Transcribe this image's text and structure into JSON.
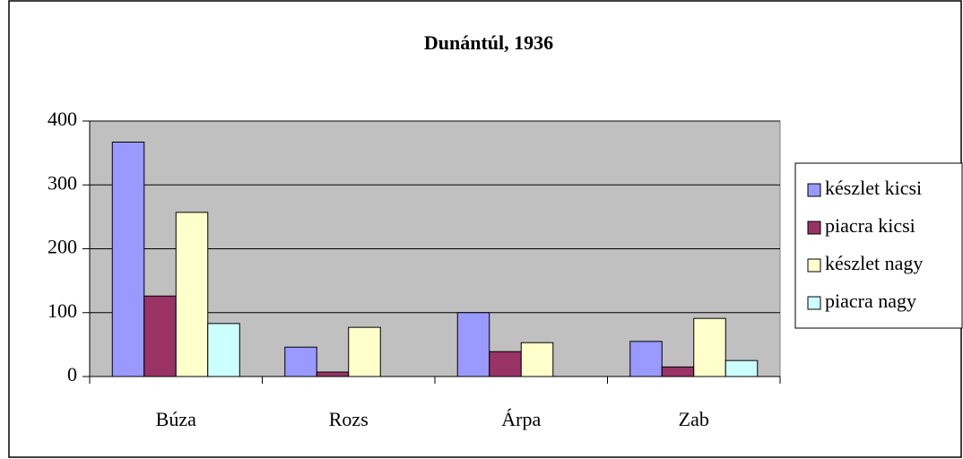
{
  "chart_data": {
    "type": "bar",
    "title": "Dunántúl, 1936",
    "categories": [
      "Búza",
      "Rozs",
      "Árpa",
      "Zab"
    ],
    "series": [
      {
        "name": "készlet kicsi",
        "color": "#9999ff",
        "values": [
          367,
          46,
          100,
          55
        ]
      },
      {
        "name": "piacra kicsi",
        "color": "#993366",
        "values": [
          126,
          7,
          39,
          15
        ]
      },
      {
        "name": "készlet nagy",
        "color": "#ffffcc",
        "values": [
          257,
          77,
          53,
          91
        ]
      },
      {
        "name": "piacra nagy",
        "color": "#ccffff",
        "values": [
          83,
          0,
          0,
          25
        ]
      }
    ],
    "ylim": [
      0,
      400
    ],
    "yticks": [
      0,
      100,
      200,
      300,
      400
    ],
    "grid": true,
    "legend": "right"
  }
}
